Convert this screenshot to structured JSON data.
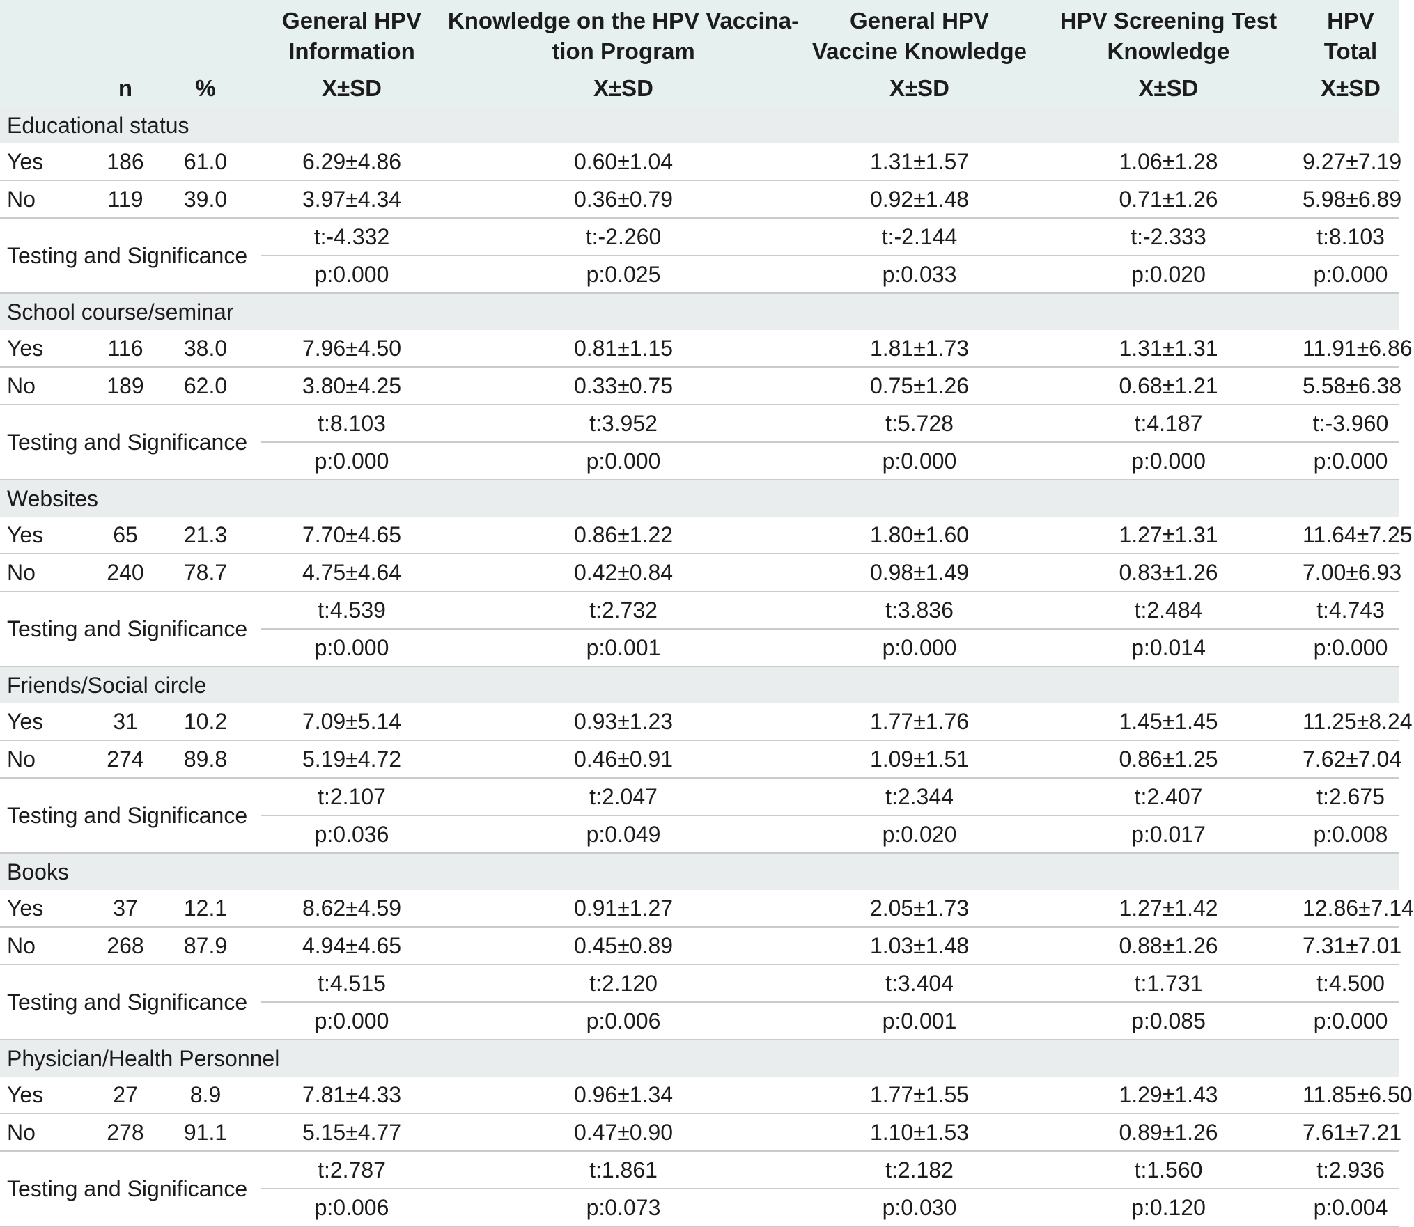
{
  "header": {
    "col_n": "n",
    "col_pct": "%",
    "columns": [
      {
        "title": "General HPV Information",
        "stat": "X±SD"
      },
      {
        "title": "Knowledge on the HPV Vaccina-tion Program",
        "stat": "X±SD"
      },
      {
        "title": "General HPV Vaccine Knowledge",
        "stat": "X±SD"
      },
      {
        "title": "HPV Screening Test Knowledge",
        "stat": "X±SD"
      },
      {
        "title": "HPV Total",
        "stat": "X±SD"
      }
    ]
  },
  "test_label": "Testing and Significance",
  "groups": [
    {
      "title": "Educational status",
      "rows": [
        {
          "label": "Yes",
          "n": "186",
          "pct": "61.0",
          "values": [
            "6.29±4.86",
            "0.60±1.04",
            "1.31±1.57",
            "1.06±1.28",
            "9.27±7.19"
          ]
        },
        {
          "label": "No",
          "n": "119",
          "pct": "39.0",
          "values": [
            "3.97±4.34",
            "0.36±0.79",
            "0.92±1.48",
            "0.71±1.26",
            "5.98±6.89"
          ]
        }
      ],
      "t": [
        "t:-4.332",
        "t:-2.260",
        "t:-2.144",
        "t:-2.333",
        "t:8.103"
      ],
      "p": [
        "p:0.000",
        "p:0.025",
        "p:0.033",
        "p:0.020",
        "p:0.000"
      ]
    },
    {
      "title": "School course/seminar",
      "rows": [
        {
          "label": "Yes",
          "n": "116",
          "pct": "38.0",
          "values": [
            "7.96±4.50",
            "0.81±1.15",
            "1.81±1.73",
            "1.31±1.31",
            "11.91±6.86"
          ]
        },
        {
          "label": "No",
          "n": "189",
          "pct": "62.0",
          "values": [
            "3.80±4.25",
            "0.33±0.75",
            "0.75±1.26",
            "0.68±1.21",
            "5.58±6.38"
          ]
        }
      ],
      "t": [
        "t:8.103",
        "t:3.952",
        "t:5.728",
        "t:4.187",
        "t:-3.960"
      ],
      "p": [
        "p:0.000",
        "p:0.000",
        "p:0.000",
        "p:0.000",
        "p:0.000"
      ]
    },
    {
      "title": "Websites",
      "rows": [
        {
          "label": "Yes",
          "n": "65",
          "pct": "21.3",
          "values": [
            "7.70±4.65",
            "0.86±1.22",
            "1.80±1.60",
            "1.27±1.31",
            "11.64±7.25"
          ]
        },
        {
          "label": "No",
          "n": "240",
          "pct": "78.7",
          "values": [
            "4.75±4.64",
            "0.42±0.84",
            "0.98±1.49",
            "0.83±1.26",
            "7.00±6.93"
          ]
        }
      ],
      "t": [
        "t:4.539",
        "t:2.732",
        "t:3.836",
        "t:2.484",
        "t:4.743"
      ],
      "p": [
        "p:0.000",
        "p:0.001",
        "p:0.000",
        "p:0.014",
        "p:0.000"
      ]
    },
    {
      "title": "Friends/Social circle",
      "rows": [
        {
          "label": "Yes",
          "n": "31",
          "pct": "10.2",
          "values": [
            "7.09±5.14",
            "0.93±1.23",
            "1.77±1.76",
            "1.45±1.45",
            "11.25±8.24"
          ]
        },
        {
          "label": "No",
          "n": "274",
          "pct": "89.8",
          "values": [
            "5.19±4.72",
            "0.46±0.91",
            "1.09±1.51",
            "0.86±1.25",
            "7.62±7.04"
          ]
        }
      ],
      "t": [
        "t:2.107",
        "t:2.047",
        "t:2.344",
        "t:2.407",
        "t:2.675"
      ],
      "p": [
        "p:0.036",
        "p:0.049",
        "p:0.020",
        "p:0.017",
        "p:0.008"
      ]
    },
    {
      "title": "Books",
      "rows": [
        {
          "label": "Yes",
          "n": "37",
          "pct": "12.1",
          "values": [
            "8.62±4.59",
            "0.91±1.27",
            "2.05±1.73",
            "1.27±1.42",
            "12.86±7.14"
          ]
        },
        {
          "label": "No",
          "n": "268",
          "pct": "87.9",
          "values": [
            "4.94±4.65",
            "0.45±0.89",
            "1.03±1.48",
            "0.88±1.26",
            "7.31±7.01"
          ]
        }
      ],
      "t": [
        "t:4.515",
        "t:2.120",
        "t:3.404",
        "t:1.731",
        "t:4.500"
      ],
      "p": [
        "p:0.000",
        "p:0.006",
        "p:0.001",
        "p:0.085",
        "p:0.000"
      ]
    },
    {
      "title": "Physician/Health Personnel",
      "rows": [
        {
          "label": "Yes",
          "n": "27",
          "pct": "8.9",
          "values": [
            "7.81±4.33",
            "0.96±1.34",
            "1.77±1.55",
            "1.29±1.43",
            "11.85±6.50"
          ]
        },
        {
          "label": "No",
          "n": "278",
          "pct": "91.1",
          "values": [
            "5.15±4.77",
            "0.47±0.90",
            "1.10±1.53",
            "0.89±1.26",
            "7.61±7.21"
          ]
        }
      ],
      "t": [
        "t:2.787",
        "t:1.861",
        "t:2.182",
        "t:1.560",
        "t:2.936"
      ],
      "p": [
        "p:0.006",
        "p:0.073",
        "p:0.030",
        "p:0.120",
        "p:0.004"
      ]
    }
  ]
}
